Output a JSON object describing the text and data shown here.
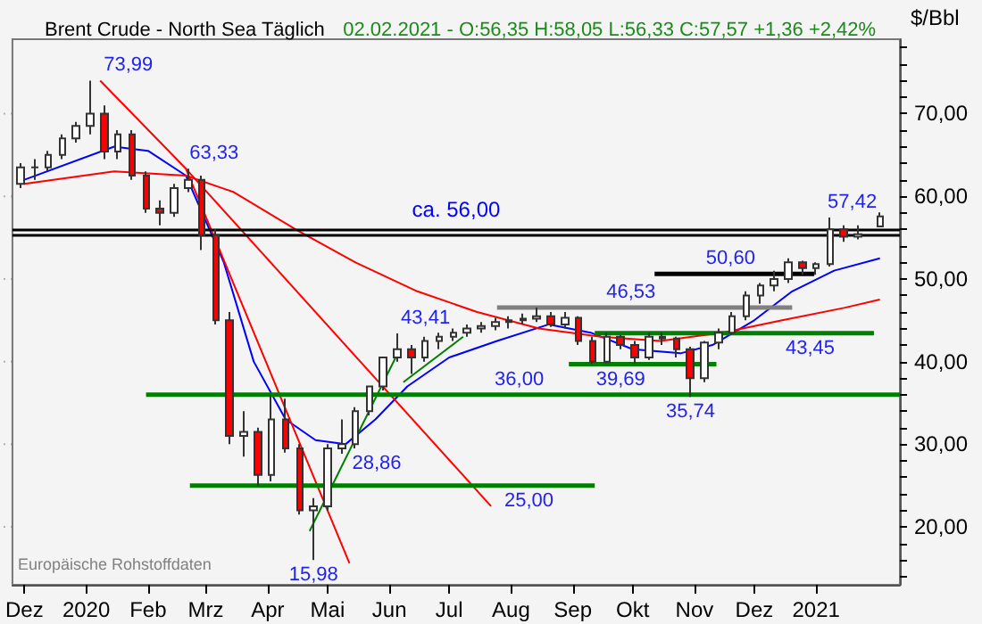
{
  "chart_data": {
    "type": "candlestick",
    "title": "Brent Crude - North Sea Täglich",
    "subtitle": "02.02.2021 - O:56,35 H:58,05 L:56,33 C:57,57 +1,36 +2,42%",
    "ylabel": "$/Bbl",
    "x": [
      "2019-11-29",
      "2019-12-06",
      "2019-12-13",
      "2019-12-20",
      "2019-12-27",
      "2020-01-03",
      "2020-01-10",
      "2020-01-17",
      "2020-01-24",
      "2020-01-31",
      "2020-02-07",
      "2020-02-14",
      "2020-02-21",
      "2020-02-28",
      "2020-03-06",
      "2020-03-13",
      "2020-03-20",
      "2020-03-27",
      "2020-04-03",
      "2020-04-10",
      "2020-04-17",
      "2020-04-24",
      "2020-05-01",
      "2020-05-08",
      "2020-05-15",
      "2020-05-22",
      "2020-05-29",
      "2020-06-05",
      "2020-06-12",
      "2020-06-19",
      "2020-06-26",
      "2020-07-03",
      "2020-07-10",
      "2020-07-17",
      "2020-07-24",
      "2020-07-31",
      "2020-08-07",
      "2020-08-14",
      "2020-08-21",
      "2020-08-28",
      "2020-09-04",
      "2020-09-11",
      "2020-09-18",
      "2020-09-25",
      "2020-10-02",
      "2020-10-09",
      "2020-10-16",
      "2020-10-23",
      "2020-10-30",
      "2020-11-06",
      "2020-11-13",
      "2020-11-20",
      "2020-11-27",
      "2020-12-04",
      "2020-12-11",
      "2020-12-18",
      "2020-12-25",
      "2021-01-01",
      "2021-01-08",
      "2021-01-15",
      "2021-01-22",
      "2021-02-02"
    ],
    "ohlc": [
      [
        61.5,
        64,
        61,
        63.5
      ],
      [
        63.5,
        64.5,
        62,
        63.5
      ],
      [
        63.5,
        65.5,
        63,
        65
      ],
      [
        65,
        67.5,
        64.5,
        67
      ],
      [
        67,
        69,
        66.5,
        68.5
      ],
      [
        68.5,
        73.99,
        67.5,
        70
      ],
      [
        70,
        71,
        64.5,
        65.4
      ],
      [
        65.4,
        68,
        64.5,
        67.5
      ],
      [
        67.5,
        68,
        62,
        62.5
      ],
      [
        62.5,
        63,
        58,
        58.5
      ],
      [
        58.5,
        59.5,
        56.5,
        58
      ],
      [
        58,
        61.5,
        57.5,
        61
      ],
      [
        61,
        63.33,
        60.5,
        62
      ],
      [
        62,
        62.5,
        53.5,
        55.3
      ],
      [
        55.3,
        56,
        44.5,
        45
      ],
      [
        45,
        46,
        30,
        31
      ],
      [
        31,
        34,
        28.5,
        31.5
      ],
      [
        31.5,
        32,
        25,
        26.3
      ],
      [
        26.3,
        36,
        25.5,
        33
      ],
      [
        33,
        35.5,
        29,
        29.5
      ],
      [
        29.5,
        30,
        21.5,
        22
      ],
      [
        22,
        23.5,
        15.98,
        22.5
      ],
      [
        22.5,
        30,
        22,
        29.5
      ],
      [
        29.5,
        33,
        28.86,
        30
      ],
      [
        30,
        34.5,
        29.5,
        34
      ],
      [
        34,
        37,
        33.5,
        37
      ],
      [
        37,
        40.5,
        36.5,
        40.5
      ],
      [
        40.5,
        43.41,
        40,
        41.5
      ],
      [
        41.5,
        42,
        38.5,
        40.5
      ],
      [
        40.5,
        43,
        40,
        42.5
      ],
      [
        42.5,
        43.5,
        41.5,
        43
      ],
      [
        43,
        44,
        42.5,
        43.5
      ],
      [
        43.5,
        44.5,
        43,
        44
      ],
      [
        44,
        44.8,
        43.5,
        44.3
      ],
      [
        44.3,
        45.3,
        43.8,
        44.8
      ],
      [
        44.8,
        45.5,
        44,
        45
      ],
      [
        45,
        45.8,
        44.5,
        45.2
      ],
      [
        45.2,
        46.53,
        44.8,
        45.5
      ],
      [
        45.5,
        46,
        44.2,
        44.5
      ],
      [
        44.5,
        46,
        44,
        45.3
      ],
      [
        45.3,
        45.5,
        42,
        42.5
      ],
      [
        42.5,
        43,
        39.69,
        40
      ],
      [
        40,
        43.5,
        39.8,
        43
      ],
      [
        43,
        43.2,
        41.5,
        42
      ],
      [
        42,
        42.5,
        39.8,
        40.5
      ],
      [
        40.5,
        43.5,
        40.2,
        43
      ],
      [
        43,
        43.5,
        42,
        42.8
      ],
      [
        42.8,
        43,
        40.5,
        41.5
      ],
      [
        41.5,
        41.8,
        35.74,
        38
      ],
      [
        38,
        42.5,
        37.5,
        42.3
      ],
      [
        42.3,
        44,
        41.5,
        43.5
      ],
      [
        43.5,
        46,
        43.2,
        45.5
      ],
      [
        45.5,
        48.5,
        45,
        48
      ],
      [
        48,
        49.5,
        47,
        49.2
      ],
      [
        49.2,
        51,
        48.5,
        50
      ],
      [
        50,
        52.5,
        49.5,
        52
      ],
      [
        52,
        52.2,
        50.5,
        51.3
      ],
      [
        51.3,
        52,
        50.5,
        51.8
      ],
      [
        51.8,
        57.42,
        51.5,
        56
      ],
      [
        56,
        56.5,
        54.5,
        55.1
      ],
      [
        55.1,
        56.5,
        54.8,
        55.4
      ],
      [
        56.35,
        58.05,
        56.33,
        57.57
      ]
    ],
    "series": [
      {
        "type": "line",
        "color": "#0000ff",
        "x": [
          "2019-12-01",
          "2020-01-15",
          "2020-02-01",
          "2020-02-20",
          "2020-03-10",
          "2020-03-25",
          "2020-04-10",
          "2020-04-25",
          "2020-05-10",
          "2020-05-25",
          "2020-06-10",
          "2020-07-01",
          "2020-07-25",
          "2020-08-20",
          "2020-09-10",
          "2020-10-01",
          "2020-10-25",
          "2020-11-10",
          "2020-12-01",
          "2020-12-20",
          "2021-01-10",
          "2021-02-02"
        ],
        "values": [
          62,
          66,
          65.5,
          62.5,
          52,
          40,
          33,
          30.5,
          30,
          33,
          37,
          40.5,
          42.5,
          44.5,
          43.5,
          41.5,
          41,
          42,
          45,
          48.5,
          51,
          52.5
        ]
      },
      {
        "type": "line",
        "color": "#ff0000",
        "x": [
          "2019-12-01",
          "2020-01-15",
          "2020-02-20",
          "2020-03-15",
          "2020-04-15",
          "2020-05-15",
          "2020-06-15",
          "2020-07-15",
          "2020-08-15",
          "2020-09-15",
          "2020-10-15",
          "2020-11-15",
          "2020-12-15",
          "2021-01-15",
          "2021-02-02"
        ],
        "values": [
          61.5,
          63,
          62.5,
          60.5,
          56,
          52,
          48.5,
          46,
          44,
          43,
          42.5,
          43.5,
          45,
          46.5,
          47.5
        ]
      },
      {
        "type": "line",
        "color": "#ff0000",
        "x": [
          "2020-01-08",
          "2020-02-20",
          "2020-05-12"
        ],
        "values": [
          73.99,
          63.33,
          15.6
        ]
      },
      {
        "type": "line",
        "color": "#ff0000",
        "x": [
          "2020-02-20",
          "2020-07-22"
        ],
        "values": [
          63.33,
          22.5
        ]
      },
      {
        "type": "line",
        "color": "#008000",
        "x": [
          "2020-04-22",
          "2020-06-05"
        ],
        "values": [
          19.5,
          40.9
        ]
      },
      {
        "type": "line",
        "color": "#008000",
        "x": [
          "2020-06-08",
          "2020-07-08"
        ],
        "values": [
          37.5,
          43
        ]
      },
      {
        "type": "line",
        "color": "#008000",
        "x": [
          "2020-01-31",
          "2021-02-12"
        ],
        "values": [
          36,
          36
        ]
      },
      {
        "type": "line",
        "color": "#008000",
        "x": [
          "2020-02-22",
          "2020-09-12"
        ],
        "values": [
          25,
          25
        ]
      },
      {
        "type": "line",
        "color": "#008000",
        "x": [
          "2020-08-30",
          "2020-11-12"
        ],
        "values": [
          39.69,
          39.69
        ]
      },
      {
        "type": "line",
        "color": "#008000",
        "x": [
          "2020-09-12",
          "2021-01-30"
        ],
        "values": [
          43.45,
          43.45
        ]
      },
      {
        "type": "line",
        "color": "#000000",
        "x": [
          "2020-10-12",
          "2020-12-31"
        ],
        "values": [
          50.6,
          50.6
        ]
      },
      {
        "type": "line",
        "color": "#808080",
        "x": [
          "2020-07-25",
          "2020-12-20"
        ],
        "values": [
          46.53,
          46.53
        ]
      }
    ],
    "ref_lines": [
      {
        "axis": "y",
        "value": 56,
        "label": "ca. 56,00",
        "color": "#000000"
      },
      {
        "axis": "y",
        "value": 55.3,
        "label": null,
        "color": "#000000"
      }
    ],
    "annotations": [
      {
        "text": "73,99",
        "x": "2020-01-08",
        "y": 73.99
      },
      {
        "text": "63,33",
        "x": "2020-02-20",
        "y": 63.33
      },
      {
        "text": "57,42",
        "x": "2021-01-05",
        "y": 57.42
      },
      {
        "text": "43,41",
        "x": "2020-06-05",
        "y": 43.41
      },
      {
        "text": "28,86",
        "x": "2020-05-08",
        "y": 28.86
      },
      {
        "text": "15,98",
        "x": "2020-04-24",
        "y": 15.98
      },
      {
        "text": "35,74",
        "x": "2020-10-30",
        "y": 35.74
      },
      {
        "text": "50,60",
        "x": "2020-11-05",
        "y": 50.6
      },
      {
        "text": "46,53",
        "x": "2020-09-16",
        "y": 46.53
      },
      {
        "text": "43,45",
        "x": "2020-12-29",
        "y": 43.45
      },
      {
        "text": "39,69",
        "x": "2020-09-25",
        "y": 39.69
      },
      {
        "text": "36,00",
        "x": "2020-07-22",
        "y": 36
      },
      {
        "text": "25,00",
        "x": "2020-08-10",
        "y": 25
      },
      "Europäische Rohstoffdaten"
    ],
    "xlim": [
      "2019-11-25",
      "2021-02-12"
    ],
    "xticks": [
      {
        "value": "2019-12-01",
        "label": "Dez"
      },
      {
        "value": "2020-01-01",
        "label": "2020"
      },
      {
        "value": "2020-02-01",
        "label": "Feb"
      },
      {
        "value": "2020-03-01",
        "label": "Mrz"
      },
      {
        "value": "2020-04-01",
        "label": "Apr"
      },
      {
        "value": "2020-05-01",
        "label": "Mai"
      },
      {
        "value": "2020-06-01",
        "label": "Jun"
      },
      {
        "value": "2020-07-01",
        "label": "Jul"
      },
      {
        "value": "2020-08-01",
        "label": "Aug"
      },
      {
        "value": "2020-09-01",
        "label": "Sep"
      },
      {
        "value": "2020-10-01",
        "label": "Okt"
      },
      {
        "value": "2020-11-01",
        "label": "Nov"
      },
      {
        "value": "2020-12-01",
        "label": "Dez"
      },
      {
        "value": "2021-01-01",
        "label": "2021"
      }
    ],
    "ylim": [
      13,
      79
    ],
    "yticks": [
      {
        "value": 14,
        "label": null
      },
      {
        "value": 16,
        "label": null
      },
      {
        "value": 18,
        "label": null
      },
      {
        "value": 20,
        "label": "20,00"
      },
      {
        "value": 22,
        "label": null
      },
      {
        "value": 24,
        "label": null
      },
      {
        "value": 26,
        "label": null
      },
      {
        "value": 28,
        "label": null
      },
      {
        "value": 30,
        "label": "30,00"
      },
      {
        "value": 32,
        "label": null
      },
      {
        "value": 34,
        "label": null
      },
      {
        "value": 36,
        "label": null
      },
      {
        "value": 38,
        "label": null
      },
      {
        "value": 40,
        "label": "40,00"
      },
      {
        "value": 42,
        "label": null
      },
      {
        "value": 44,
        "label": null
      },
      {
        "value": 46,
        "label": null
      },
      {
        "value": 48,
        "label": null
      },
      {
        "value": 50,
        "label": "50,00"
      },
      {
        "value": 52,
        "label": null
      },
      {
        "value": 54,
        "label": null
      },
      {
        "value": 56,
        "label": null
      },
      {
        "value": 58,
        "label": null
      },
      {
        "value": 60,
        "label": "60,00"
      },
      {
        "value": 62,
        "label": null
      },
      {
        "value": 64,
        "label": null
      },
      {
        "value": 66,
        "label": null
      },
      {
        "value": 68,
        "label": null
      },
      {
        "value": 70,
        "label": "70,00"
      },
      {
        "value": 72,
        "label": null
      },
      {
        "value": 74,
        "label": null
      },
      {
        "value": 76,
        "label": null
      },
      {
        "value": 78,
        "label": null
      }
    ],
    "grid": true
  }
}
